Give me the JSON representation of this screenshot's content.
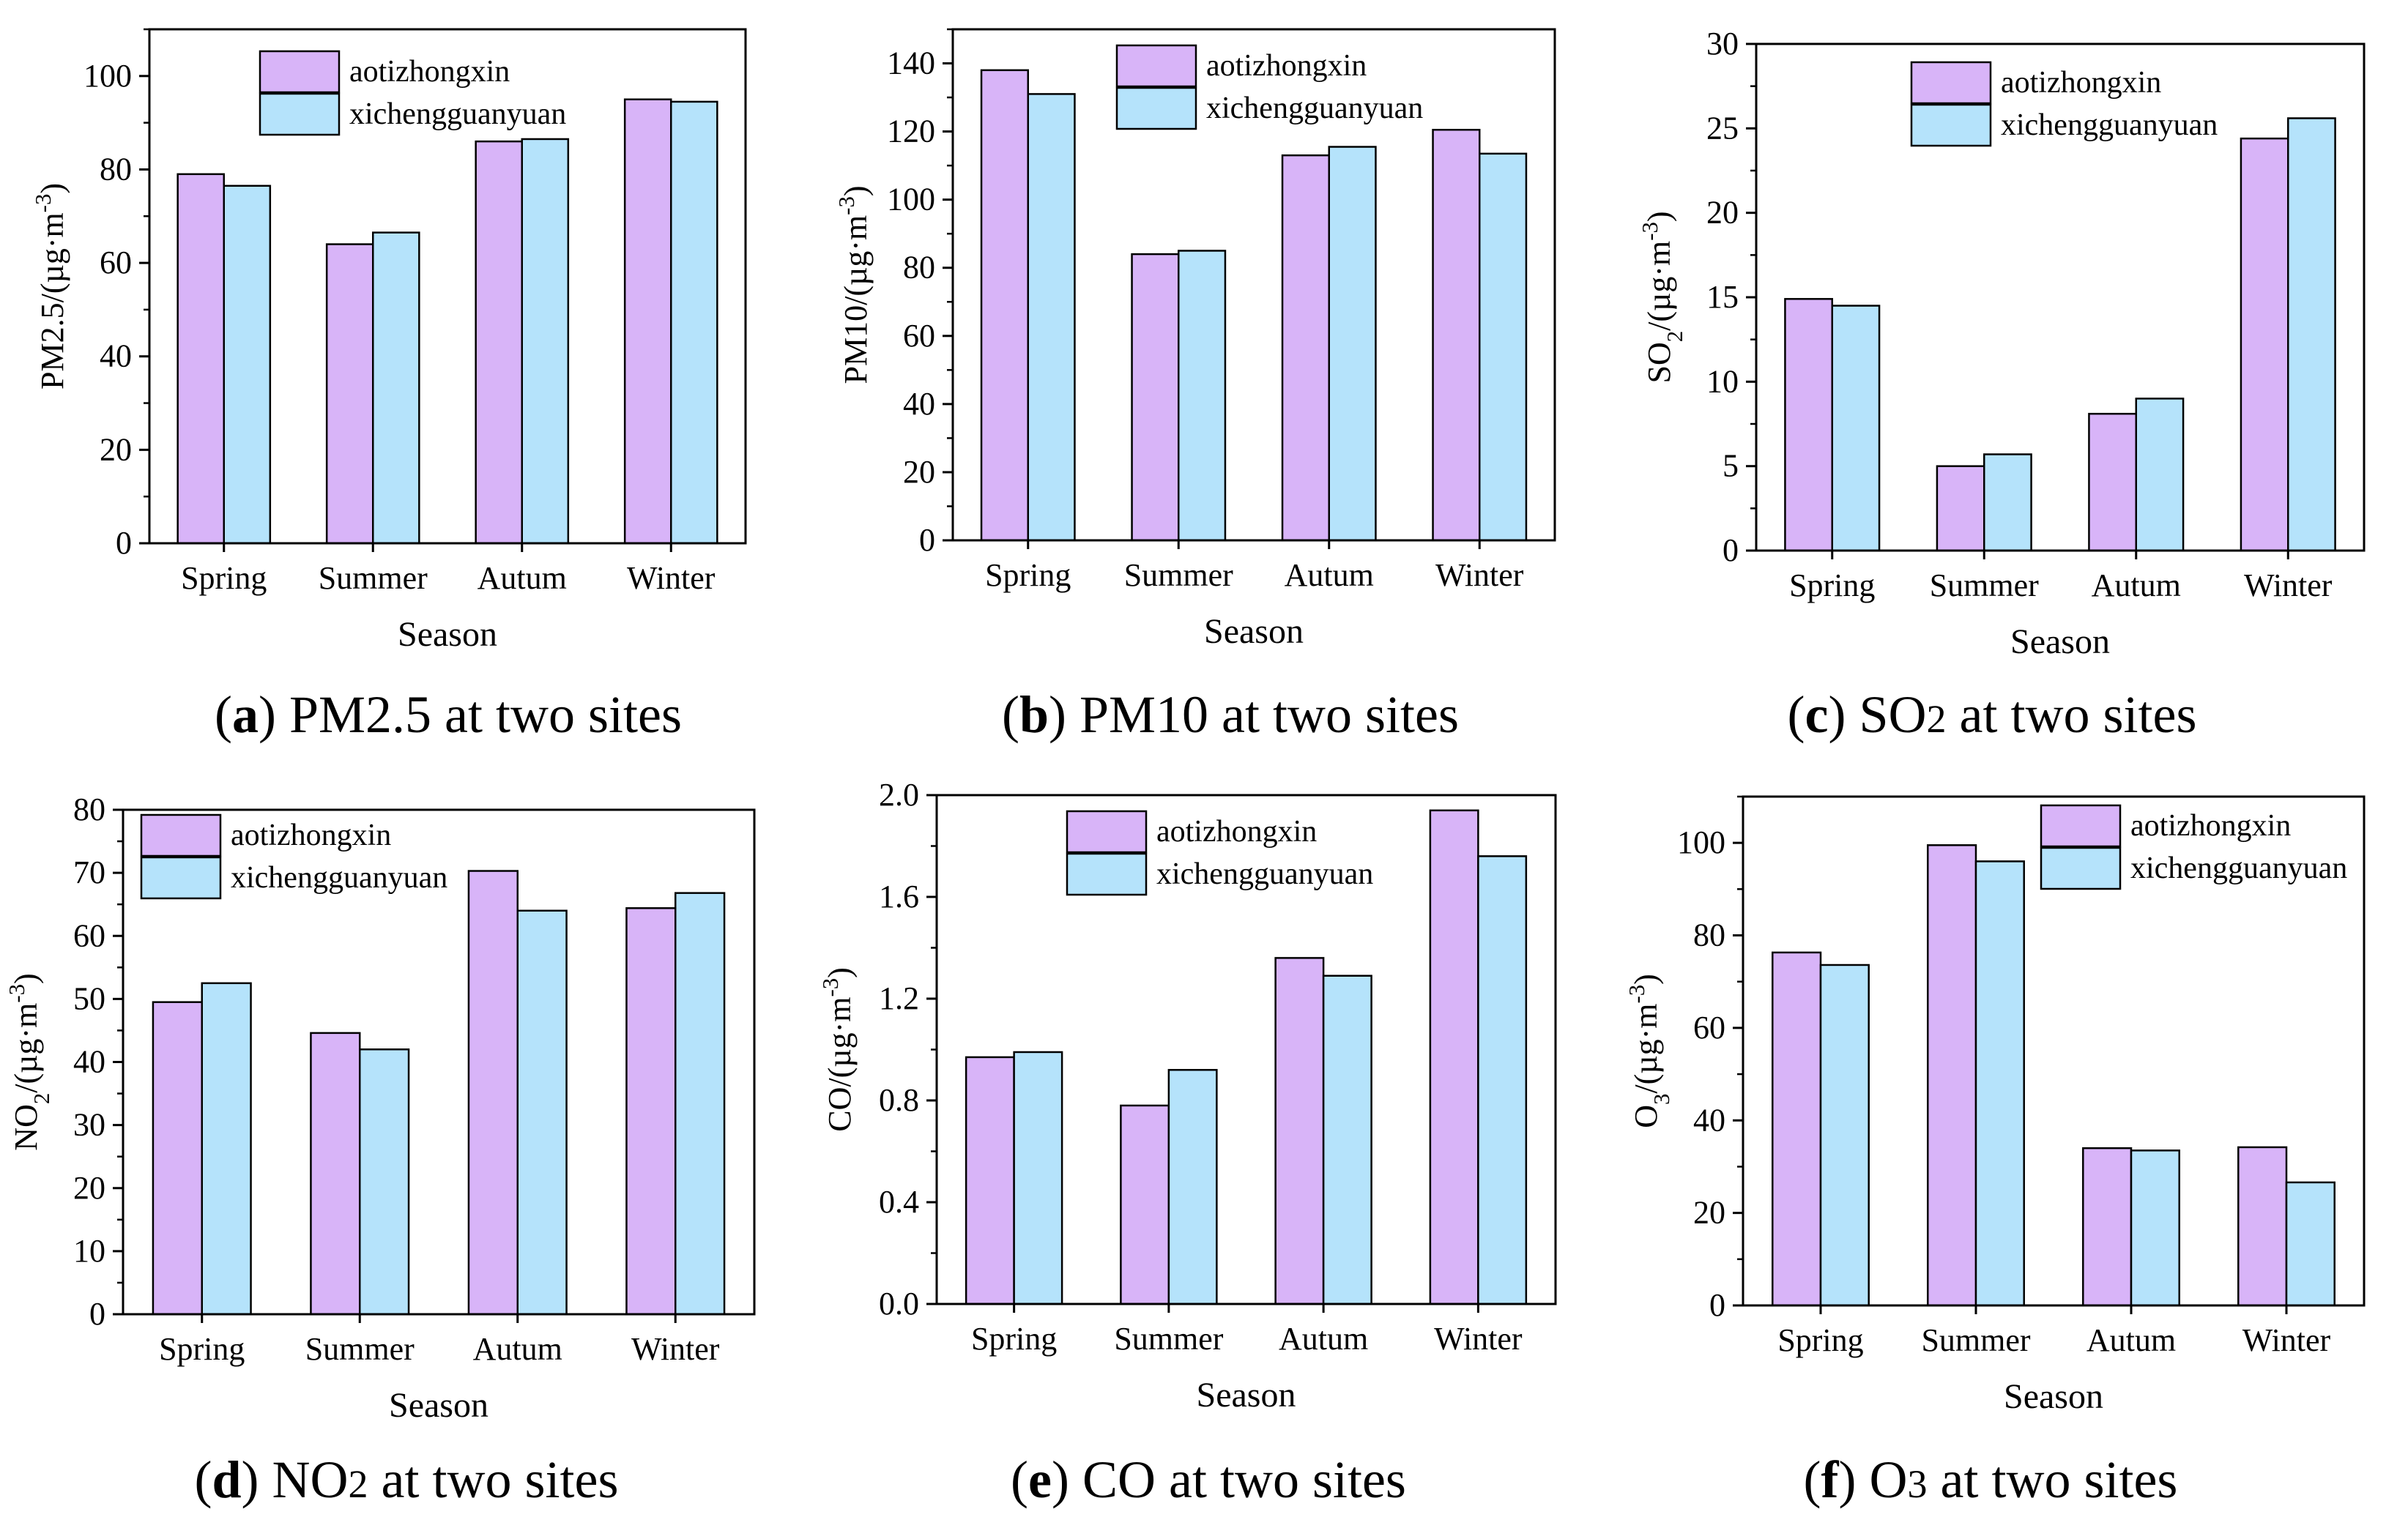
{
  "legend_labels": [
    "aotizhongxin",
    "xichengguanyuan"
  ],
  "series_colors": [
    "#d8b4f8",
    "#b5e3fb"
  ],
  "panels": [
    {
      "caption_letter": "a",
      "caption_html": " PM2.5 at two sites",
      "ylabel_html": "PM2.5/(&#181;g&#183;m<tspan baseline-shift='super' font-size='70%'>-3</tspan>)",
      "chart_data": {
        "type": "bar",
        "categories": [
          "Spring",
          "Summer",
          "Autum",
          "Winter"
        ],
        "series": [
          {
            "name": "aotizhongxin",
            "values": [
              79,
              64,
              86,
              95
            ]
          },
          {
            "name": "xichengguanyuan",
            "values": [
              76.5,
              66.5,
              86.5,
              94.5
            ]
          }
        ],
        "xlabel": "Season",
        "ylabel": "PM2.5/(µg·m-3)",
        "ylim": [
          0,
          110
        ],
        "yticks": [
          0,
          20,
          40,
          60,
          80,
          100
        ],
        "ytick_labels": [
          "0",
          "20",
          "40",
          "60",
          "80",
          "100"
        ],
        "legend": "top-center"
      }
    },
    {
      "caption_letter": "b",
      "caption_html": " PM10 at two sites",
      "ylabel_html": "PM10/(&#181;g&#183;m<tspan baseline-shift='super' font-size='70%'>-3</tspan>)",
      "chart_data": {
        "type": "bar",
        "categories": [
          "Spring",
          "Summer",
          "Autum",
          "Winter"
        ],
        "series": [
          {
            "name": "aotizhongxin",
            "values": [
              138,
              84,
              113,
              120.5
            ]
          },
          {
            "name": "xichengguanyuan",
            "values": [
              131,
              85,
              115.5,
              113.5
            ]
          }
        ],
        "xlabel": "Season",
        "ylabel": "PM10/(µg·m-3)",
        "ylim": [
          0,
          150
        ],
        "yticks": [
          0,
          20,
          40,
          60,
          80,
          100,
          120,
          140
        ],
        "ytick_labels": [
          "0",
          "20",
          "40",
          "60",
          "80",
          "100",
          "120",
          "140"
        ],
        "legend": "top-center"
      }
    },
    {
      "caption_letter": "c",
      "caption_html": " SO<tspan font-size='75%'>2</tspan> at two sites",
      "ylabel_html": "SO<tspan baseline-shift='sub' font-size='70%'>2</tspan>/(&#181;g&#183;m<tspan baseline-shift='super' font-size='70%'>-3</tspan>)",
      "chart_data": {
        "type": "bar",
        "categories": [
          "Spring",
          "Summer",
          "Autum",
          "Winter"
        ],
        "series": [
          {
            "name": "aotizhongxin",
            "values": [
              14.9,
              5.0,
              8.1,
              24.4
            ]
          },
          {
            "name": "xichengguanyuan",
            "values": [
              14.5,
              5.7,
              9.0,
              25.6
            ]
          }
        ],
        "xlabel": "Season",
        "ylabel": "SO2/(µg·m-3)",
        "ylim": [
          0,
          30
        ],
        "yticks": [
          0,
          5,
          10,
          15,
          20,
          25,
          30
        ],
        "ytick_labels": [
          "0",
          "5",
          "10",
          "15",
          "20",
          "25",
          "30"
        ],
        "legend": "top-center"
      }
    },
    {
      "caption_letter": "d",
      "caption_html": " NO<tspan font-size='75%'>2</tspan> at two sites",
      "ylabel_html": "NO<tspan baseline-shift='sub' font-size='70%'>2</tspan>/(&#181;g&#183;m<tspan baseline-shift='super' font-size='70%'>-3</tspan>)",
      "chart_data": {
        "type": "bar",
        "categories": [
          "Spring",
          "Summer",
          "Autum",
          "Winter"
        ],
        "series": [
          {
            "name": "aotizhongxin",
            "values": [
              49.5,
              44.6,
              70.3,
              64.4
            ]
          },
          {
            "name": "xichengguanyuan",
            "values": [
              52.5,
              42,
              64,
              66.8
            ]
          }
        ],
        "xlabel": "Season",
        "ylabel": "NO2/(µg·m-3)",
        "ylim": [
          0,
          80
        ],
        "yticks": [
          0,
          10,
          20,
          30,
          40,
          50,
          60,
          70,
          80
        ],
        "ytick_labels": [
          "0",
          "10",
          "20",
          "30",
          "40",
          "50",
          "60",
          "70",
          "80"
        ],
        "legend": "top-left"
      }
    },
    {
      "caption_letter": "e",
      "caption_html": " CO at two sites",
      "ylabel_html": "CO/(&#181;g&#183;m<tspan baseline-shift='super' font-size='70%'>-3</tspan>)",
      "chart_data": {
        "type": "bar",
        "categories": [
          "Spring",
          "Summer",
          "Autum",
          "Winter"
        ],
        "series": [
          {
            "name": "aotizhongxin",
            "values": [
              0.97,
              0.78,
              1.36,
              1.94
            ]
          },
          {
            "name": "xichengguanyuan",
            "values": [
              0.99,
              0.92,
              1.29,
              1.76
            ]
          }
        ],
        "xlabel": "Season",
        "ylabel": "CO/(µg·m-3)",
        "ylim": [
          0,
          2.0
        ],
        "yticks": [
          0,
          0.4,
          0.8,
          1.2,
          1.6,
          2.0
        ],
        "ytick_labels": [
          "0.0",
          "0.4",
          "0.8",
          "1.2",
          "1.6",
          "2.0"
        ],
        "legend": "top-center"
      }
    },
    {
      "caption_letter": "f",
      "caption_html": " O<tspan font-size='75%'>3</tspan> at two sites",
      "ylabel_html": "O<tspan baseline-shift='sub' font-size='70%'>3</tspan>/(&#181;g&#183;m<tspan baseline-shift='super' font-size='70%'>-3</tspan>)",
      "chart_data": {
        "type": "bar",
        "categories": [
          "Spring",
          "Summer",
          "Autum",
          "Winter"
        ],
        "series": [
          {
            "name": "aotizhongxin",
            "values": [
              76.3,
              99.5,
              34,
              34.2
            ]
          },
          {
            "name": "xichengguanyuan",
            "values": [
              73.6,
              96,
              33.5,
              26.6
            ]
          }
        ],
        "xlabel": "Season",
        "ylabel": "O3/(µg·m-3)",
        "ylim": [
          0,
          110
        ],
        "yticks": [
          0,
          20,
          40,
          60,
          80,
          100
        ],
        "ytick_labels": [
          "0",
          "20",
          "40",
          "60",
          "80",
          "100"
        ],
        "legend": "top-right"
      }
    }
  ]
}
